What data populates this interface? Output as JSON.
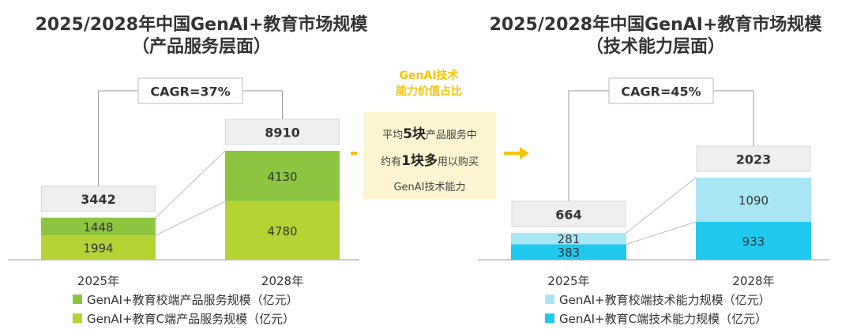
{
  "left": {
    "title_line1": "2025/2028年中国GenAI+教育市场规模",
    "title_line2": "（产品服务层面）",
    "cagr_label": "CAGR=37%",
    "legend": [
      {
        "label": "GenAI+教育校端产品服务规模（亿元）",
        "color": "#8cc63f"
      },
      {
        "label": "GenAI+教育C端产品服务规模（亿元）",
        "color": "#b5d334"
      }
    ]
  },
  "right": {
    "title_line1": "2025/2028年中国GenAI+教育市场规模",
    "title_line2": "（技术能力层面）",
    "cagr_label": "CAGR=45%",
    "legend": [
      {
        "label": "GenAI+教育校端技术能力规模（亿元）",
        "color": "#a8e6f6"
      },
      {
        "label": "GenAI+教育C端技术能力规模（亿元）",
        "color": "#1fc8ef"
      }
    ]
  },
  "middle": {
    "title_line1": "GenAI技术",
    "title_line2": "能力价值占比",
    "text_line1_pre": "平均",
    "text_line1_bold": "5块",
    "text_line1_post": "产品服务中",
    "text_line2_pre": "约有",
    "text_line2_bold": "1块多",
    "text_line2_post": "用以购买",
    "text_line3": "GenAI技术能力",
    "arrow_color": "#f5c400"
  },
  "chart_data": [
    {
      "type": "bar",
      "stacked": true,
      "categories": [
        "2025年",
        "2028年"
      ],
      "series": [
        {
          "name": "GenAI+教育C端产品服务规模（亿元）",
          "values": [
            1994,
            4780
          ],
          "color": "#b5d334"
        },
        {
          "name": "GenAI+教育校端产品服务规模（亿元）",
          "values": [
            1448,
            4130
          ],
          "color": "#8cc63f"
        }
      ],
      "totals": [
        "3442",
        "8910"
      ],
      "ylim": [
        0,
        8910
      ]
    },
    {
      "type": "bar",
      "stacked": true,
      "categories": [
        "2025年",
        "2028年"
      ],
      "series": [
        {
          "name": "GenAI+教育C端技术能力规模（亿元）",
          "values": [
            383,
            933
          ],
          "color": "#1fc8ef"
        },
        {
          "name": "GenAI+教育校端技术能力规模（亿元）",
          "values": [
            281,
            1090
          ],
          "color": "#a8e6f6"
        }
      ],
      "totals": [
        "664",
        "2023"
      ],
      "ylim": [
        0,
        2023
      ]
    }
  ]
}
